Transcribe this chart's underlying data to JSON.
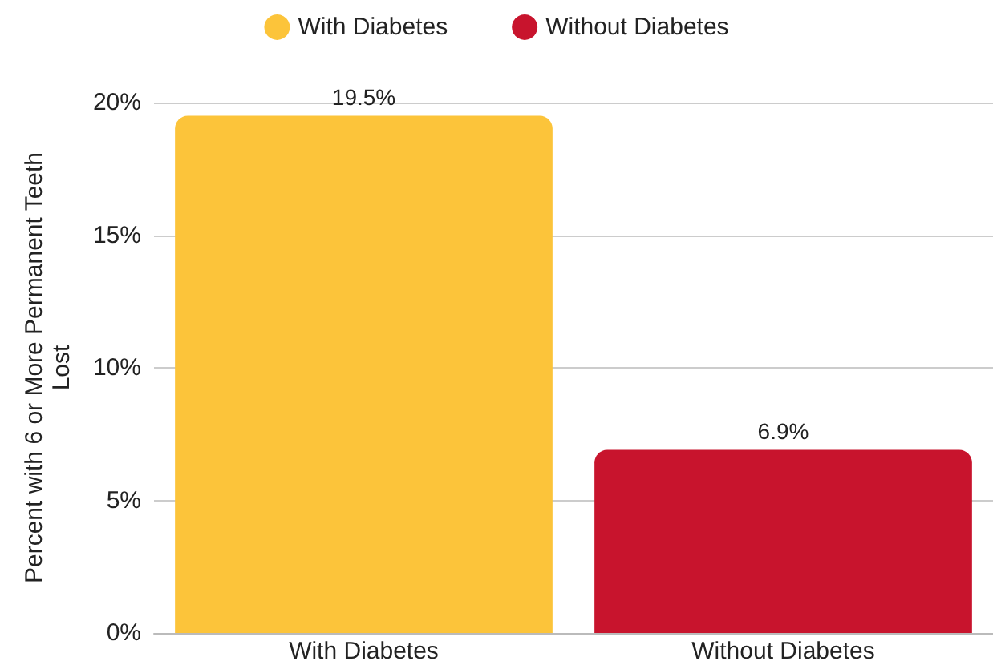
{
  "chart_data": {
    "type": "bar",
    "ylabel": "Percent with 6 or More Permanent Teeth Lost",
    "categories": [
      "With Diabetes",
      "Without Diabetes"
    ],
    "series": [
      {
        "name": "With Diabetes",
        "color": "#fcc43a",
        "values": [
          19.5,
          null
        ],
        "value_labels": [
          "19.5%",
          null
        ]
      },
      {
        "name": "Without Diabetes",
        "color": "#c8142d",
        "values": [
          null,
          6.9
        ],
        "value_labels": [
          null,
          "6.9%"
        ]
      }
    ],
    "ylim": [
      0,
      20
    ],
    "yticks": [
      {
        "value": 0,
        "label": "0%"
      },
      {
        "value": 5,
        "label": "5%"
      },
      {
        "value": 10,
        "label": "10%"
      },
      {
        "value": 15,
        "label": "15%"
      },
      {
        "value": 20,
        "label": "20%"
      }
    ],
    "grid": "y",
    "legend": "top"
  }
}
